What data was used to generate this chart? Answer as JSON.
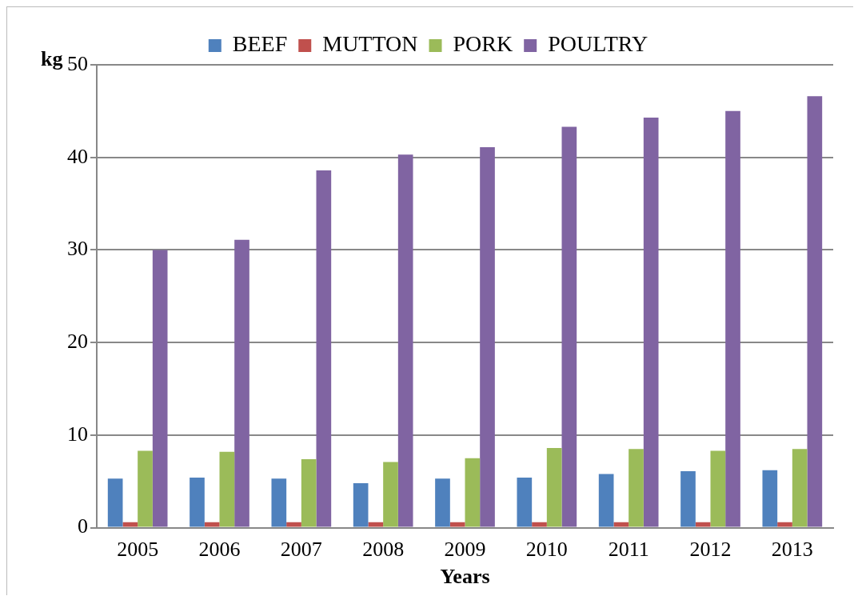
{
  "chart_data": {
    "type": "bar",
    "ylabel": "kg",
    "xlabel": "Years",
    "categories": [
      "2005",
      "2006",
      "2007",
      "2008",
      "2009",
      "2010",
      "2011",
      "2012",
      "2013"
    ],
    "series": [
      {
        "name": "BEEF",
        "color": "#4f81bd",
        "values": [
          5.3,
          5.4,
          5.3,
          4.8,
          5.3,
          5.4,
          5.8,
          6.1,
          6.2
        ]
      },
      {
        "name": "MUTTON",
        "color": "#c0504d",
        "values": [
          0.6,
          0.6,
          0.6,
          0.6,
          0.6,
          0.6,
          0.6,
          0.6,
          0.6
        ]
      },
      {
        "name": "PORK",
        "color": "#9bbb59",
        "values": [
          8.3,
          8.2,
          7.4,
          7.1,
          7.5,
          8.6,
          8.5,
          8.3,
          8.5
        ]
      },
      {
        "name": "POULTRY",
        "color": "#8064a2",
        "values": [
          30.0,
          31.1,
          38.6,
          40.3,
          41.1,
          43.3,
          44.3,
          45.0,
          46.6
        ]
      }
    ],
    "ylim": [
      0,
      50
    ],
    "yticks": [
      0,
      10,
      20,
      30,
      40,
      50
    ],
    "grid": "y",
    "legend": "top"
  }
}
